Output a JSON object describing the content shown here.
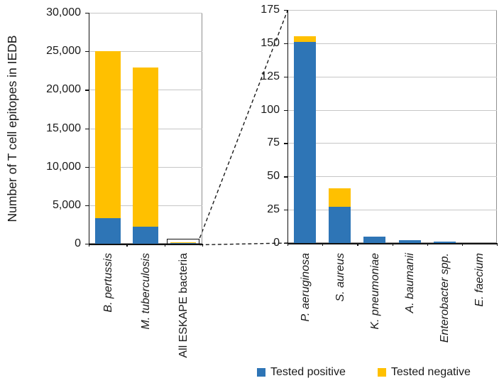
{
  "ylabel": "Number of T cell epitopes in IEDB",
  "colors": {
    "positive": "#2E75B6",
    "negative": "#FFC000"
  },
  "legend": {
    "items": [
      {
        "label": "Tested positive",
        "color": "#2E75B6"
      },
      {
        "label": "Tested negative",
        "color": "#FFC000"
      }
    ]
  },
  "chart_data": [
    {
      "type": "bar",
      "stacked": true,
      "title": "",
      "ylabel": "Number of T cell epitopes in IEDB",
      "categories": [
        "B. pertussis",
        "M. tuberculosis",
        "All ESKAPE bacteria"
      ],
      "categories_italic": [
        true,
        true,
        false
      ],
      "series": [
        {
          "name": "Tested positive",
          "values": [
            3300,
            2200,
            190
          ]
        },
        {
          "name": "Tested negative",
          "values": [
            21700,
            20700,
            20
          ]
        }
      ],
      "ylim": [
        0,
        30000
      ],
      "ytick_step": 5000,
      "ytick_labels": [
        "0",
        "5,000",
        "10,000",
        "15,000",
        "20,000",
        "25,000",
        "30,000"
      ],
      "grid": true,
      "annotation": "black zoom-callout box around the All ESKAPE bacteria bar, linked by dashed lines to the right panel"
    },
    {
      "type": "bar",
      "stacked": true,
      "title": "",
      "categories": [
        "P. aeruginosa",
        "S. aureus",
        "K. pneumoniae",
        "A. baumanii",
        "Enterobacter spp.",
        "E. faecium"
      ],
      "categories_italic": [
        true,
        true,
        true,
        true,
        true,
        true
      ],
      "series": [
        {
          "name": "Tested positive",
          "values": [
            151,
            27,
            5,
            2,
            1,
            0
          ]
        },
        {
          "name": "Tested negative",
          "values": [
            4,
            14,
            0,
            0,
            0,
            0
          ]
        }
      ],
      "ylim": [
        0,
        175
      ],
      "ytick_step": 25,
      "ytick_labels": [
        "0",
        "25",
        "50",
        "75",
        "100",
        "125",
        "150",
        "175"
      ],
      "grid": true
    }
  ]
}
